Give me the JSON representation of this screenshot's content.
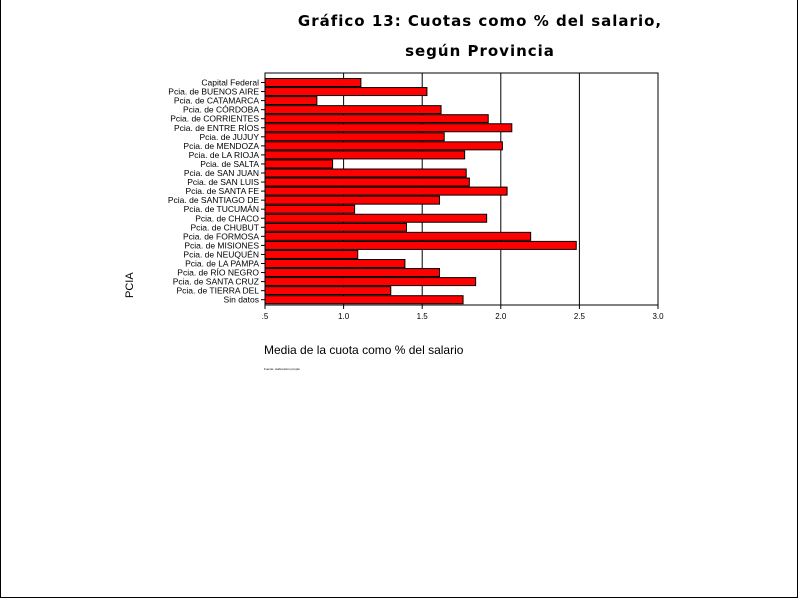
{
  "chart_data": {
    "type": "bar",
    "orientation": "horizontal",
    "title": "Gráfico 13: Cuotas como % del salario,",
    "title_line2": "según Provincia",
    "xlabel": "Media de la cuota como % del salario",
    "ylabel": "PCIA",
    "note": "Fuente: elaboración propia",
    "xlim": [
      0.5,
      3.0
    ],
    "xticks": [
      0.5,
      1.0,
      1.5,
      2.0,
      2.5,
      3.0
    ],
    "xtick_labels": [
      ".5",
      "1.0",
      "1.5",
      "2.0",
      "2.5",
      "3.0"
    ],
    "grid": "vertical",
    "bar_color": "#ff0000",
    "categories": [
      "Capital Federal",
      "Pcia. de BUENOS AIRE",
      "Pcia. de CATAMARCA",
      "Pcia. de CÓRDOBA",
      "Pcia. de CORRIENTES",
      "Pcia. de ENTRE RÍOS",
      "Pcia. de JUJUY",
      "Pcia. de MENDOZA",
      "Pcia. de LA RIOJA",
      "Pcia. de SALTA",
      "Pcia. de SAN JUAN",
      "Pcia. de SAN LUIS",
      "Pcia. de SANTA FE",
      "Pcia. de SANTIAGO DE",
      "Pcia. de TUCUMÁN",
      "Pcia. de CHACO",
      "Pcia. de CHUBUT",
      "Pcia. de FORMOSA",
      "Pcia. de MISIONES",
      "Pcia. de NEUQUÉN",
      "Pcia. de LA PAMPA",
      "Pcia. de RÍO NEGRO",
      "Pcia. de SANTA CRUZ",
      "Pcia. de TIERRA DEL",
      "Sin datos"
    ],
    "values": [
      1.11,
      1.53,
      0.83,
      1.62,
      1.92,
      2.07,
      1.64,
      2.01,
      1.77,
      0.93,
      1.78,
      1.8,
      2.04,
      1.61,
      1.07,
      1.91,
      1.4,
      2.19,
      2.48,
      1.09,
      1.39,
      1.61,
      1.84,
      1.3,
      1.76
    ]
  }
}
